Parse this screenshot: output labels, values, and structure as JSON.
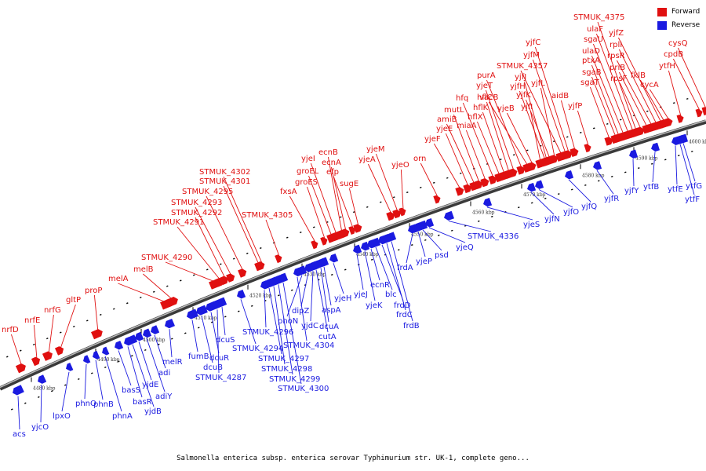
{
  "caption": "Salmonella enterica subsp. enterica serovar Typhimurium str. UK-1, complete geno...",
  "legend": {
    "forward_label": "Forward",
    "reverse_label": "Reverse",
    "forward_color": "#e01010",
    "reverse_color": "#1a1ae0"
  },
  "backbone_color": "#888888",
  "tick_labels": [
    "4480 kbp",
    "4490 kbp",
    "4500 kbp",
    "4510 kbp",
    "4520 kbp",
    "4530 kbp",
    "4540 kbp",
    "4550 kbp",
    "4560 kbp",
    "4570 kbp",
    "4580 kbp",
    "4590 kbp",
    "4600 kbp"
  ],
  "forward_genes": [
    "nrfD",
    "nrfE",
    "nrfG",
    "gltP",
    "proP",
    "melA",
    "melB",
    "STMUK_4290",
    "STMUK_4291",
    "STMUK_4292",
    "STMUK_4293",
    "STMUK_4295",
    "STMUK_4301",
    "STMUK_4302",
    "STMUK_4305",
    "fxsA",
    "groES",
    "groEL",
    "yjeI",
    "ecnB",
    "ecnA",
    "efp",
    "sugE",
    "yjeA",
    "yjeM",
    "yjeO",
    "orn",
    "yjeF",
    "yjeE",
    "amiB",
    "mutL",
    "miaA",
    "hfq",
    "hflX",
    "hflK",
    "hflC",
    "yjeT",
    "purA",
    "vacB",
    "yjeB",
    "yjfI",
    "yjfH",
    "yjfJ",
    "yjfK",
    "yjfL",
    "STMUK_4357",
    "yjfM",
    "yjfC",
    "aidB",
    "yjfP",
    "sgaT",
    "sgaB",
    "ptxA",
    "ulaD",
    "sgaU",
    "ulaF",
    "STMUK_4375",
    "rpsF",
    "priB",
    "rpsR",
    "rplI",
    "yjfZ",
    "fklB",
    "cycA",
    "ytfH",
    "cpdB",
    "cysQ"
  ],
  "reverse_genes": [
    "acs",
    "yjcO",
    "lpxO",
    "phnO",
    "phnB",
    "phnA",
    "basS",
    "basR",
    "yjdB",
    "yjdE",
    "adiY",
    "adi",
    "melR",
    "fumB",
    "dcuB",
    "dcuR",
    "STMUK_4287",
    "dcuS",
    "STMUK_4294",
    "STMUK_4296",
    "STMUK_4297",
    "STMUK_4298",
    "STMUK_4299",
    "STMUK_4300",
    "STMUK_4304",
    "phoN",
    "dipZ",
    "yjdC",
    "cutA",
    "dcuA",
    "aspA",
    "yjeH",
    "yjeJ",
    "yjeK",
    "ecnR",
    "blc",
    "frdD",
    "frdC",
    "frdB",
    "frdA",
    "yjeP",
    "psd",
    "yjeQ",
    "STMUK_4336",
    "yjeS",
    "yjfN",
    "yjfO",
    "yjfQ",
    "yjfR",
    "yjfY",
    "ytfB",
    "ytfE",
    "ytfF",
    "ytfG"
  ]
}
